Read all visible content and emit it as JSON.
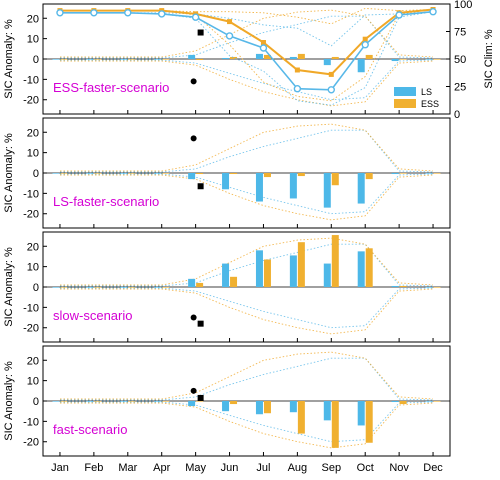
{
  "colors": {
    "ls": "#4db8e8",
    "ess": "#f0b030",
    "ls_line": "#58b8e8",
    "ess_line": "#f0a828",
    "scenario_label": "#d400d4",
    "axis": "#000000"
  },
  "legend": {
    "ls": "LS",
    "ess": "ESS"
  },
  "chart_data": [
    {
      "type": "bar",
      "scenario": "ESS-faster-scenario",
      "ylabel": "SIC Anomaly: %",
      "y2label": "SIC Clim: %",
      "ylim": [
        -27,
        27
      ],
      "y2lim": [
        0,
        100
      ],
      "yticks": [
        20,
        10,
        0,
        -10,
        -20
      ],
      "y2ticks": [
        100,
        75,
        50,
        25,
        0
      ],
      "categories": [
        "Jan",
        "Feb",
        "Mar",
        "Apr",
        "May",
        "Jun",
        "Jul",
        "Aug",
        "Sep",
        "Oct",
        "Nov",
        "Dec"
      ],
      "series": [
        {
          "name": "LS",
          "values": [
            0,
            0,
            0,
            0,
            2,
            0.5,
            2.5,
            1,
            -3,
            -6.5,
            -1,
            0
          ]
        },
        {
          "name": "ESS",
          "values": [
            0,
            0,
            0,
            0,
            -0.5,
            1,
            2,
            2.5,
            1,
            2,
            0,
            0
          ]
        }
      ],
      "clim_ls": [
        92,
        92,
        92,
        91,
        88,
        71,
        60,
        23,
        22,
        63,
        90,
        93
      ],
      "clim_ess": [
        94,
        94,
        94,
        94,
        91,
        84,
        65,
        40,
        36,
        68,
        92,
        95
      ],
      "clim_ls_upper": [
        92,
        92,
        92,
        92,
        91,
        87,
        81,
        78,
        62,
        90,
        91,
        93
      ],
      "clim_ls_lower": [
        92,
        92,
        92,
        91,
        87,
        53,
        39,
        12,
        8,
        24,
        88,
        93
      ],
      "clim_ess_upper": [
        94,
        94,
        94,
        94,
        93,
        93,
        92,
        88,
        82,
        96,
        94,
        95
      ],
      "clim_ess_lower": [
        94,
        94,
        94,
        94,
        90,
        63,
        29,
        16,
        12,
        34,
        91,
        95
      ],
      "markers": {
        "circle": -11,
        "square": 13
      }
    },
    {
      "type": "bar",
      "scenario": "LS-faster-scenario",
      "ylabel": "SIC Anomaly: %",
      "ylim": [
        -27,
        27
      ],
      "yticks": [
        20,
        10,
        0,
        -10,
        -20
      ],
      "categories": [
        "Jan",
        "Feb",
        "Mar",
        "Apr",
        "May",
        "Jun",
        "Jul",
        "Aug",
        "Sep",
        "Oct",
        "Nov",
        "Dec"
      ],
      "series": [
        {
          "name": "LS",
          "values": [
            0,
            0,
            0,
            0,
            -3,
            -8,
            -14,
            -12.5,
            -17,
            -15,
            -0.5,
            0
          ]
        },
        {
          "name": "ESS",
          "values": [
            0,
            0,
            0,
            0,
            -0.5,
            -0.5,
            -2,
            -1.5,
            -6,
            -3,
            0,
            0
          ]
        }
      ],
      "markers": {
        "circle": 17,
        "square": -6.5
      }
    },
    {
      "type": "bar",
      "scenario": "slow-scenario",
      "ylabel": "SIC Anomaly: %",
      "ylim": [
        -27,
        27
      ],
      "yticks": [
        20,
        10,
        0,
        -10,
        -20
      ],
      "categories": [
        "Jan",
        "Feb",
        "Mar",
        "Apr",
        "May",
        "Jun",
        "Jul",
        "Aug",
        "Sep",
        "Oct",
        "Nov",
        "Dec"
      ],
      "series": [
        {
          "name": "LS",
          "values": [
            0,
            0,
            0,
            0,
            4,
            11.5,
            18,
            15.5,
            11.5,
            17.5,
            0.5,
            0
          ]
        },
        {
          "name": "ESS",
          "values": [
            0,
            0,
            0,
            0,
            2,
            5,
            13.5,
            22,
            25.5,
            19,
            0.5,
            0
          ]
        }
      ],
      "markers": {
        "circle": -15,
        "square": -18
      }
    },
    {
      "type": "bar",
      "scenario": "fast-scenario",
      "ylabel": "SIC Anomaly: %",
      "ylim": [
        -27,
        27
      ],
      "yticks": [
        20,
        10,
        0,
        -10,
        -20
      ],
      "categories": [
        "Jan",
        "Feb",
        "Mar",
        "Apr",
        "May",
        "Jun",
        "Jul",
        "Aug",
        "Sep",
        "Oct",
        "Nov",
        "Dec"
      ],
      "series": [
        {
          "name": "LS",
          "values": [
            0,
            0,
            0,
            0,
            -2.5,
            -5,
            -6.5,
            -5.5,
            -9.5,
            -12,
            -0.5,
            0
          ]
        },
        {
          "name": "ESS",
          "values": [
            0,
            0,
            0,
            0,
            0,
            -1.5,
            -6,
            -16,
            -23,
            -20.5,
            -1.5,
            0
          ]
        }
      ],
      "markers": {
        "circle": 5,
        "square": 1.5
      }
    }
  ],
  "envelope": {
    "ls_upper": [
      0.5,
      0.5,
      0.5,
      0.5,
      2,
      8,
      13,
      17,
      21,
      21,
      1,
      0.5
    ],
    "ls_lower": [
      -0.5,
      -0.5,
      -0.5,
      -0.5,
      -2,
      -7,
      -12,
      -16,
      -20,
      -19,
      -1,
      -0.5
    ],
    "ess_upper": [
      1,
      1,
      1,
      1,
      4,
      12,
      20,
      23,
      24,
      21,
      2,
      1
    ],
    "ess_lower": [
      -1,
      -1,
      -1,
      -1,
      -3,
      -10,
      -16,
      -20,
      -23,
      -21,
      -2,
      -1
    ]
  }
}
